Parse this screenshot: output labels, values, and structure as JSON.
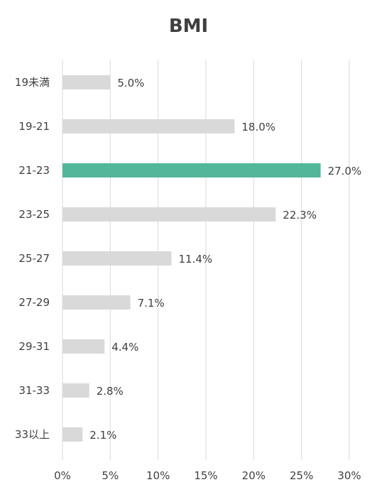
{
  "chart_data": {
    "type": "bar",
    "orientation": "horizontal",
    "title": "BMI",
    "categories": [
      "19未満",
      "19-21",
      "21-23",
      "23-25",
      "25-27",
      "27-29",
      "29-31",
      "31-33",
      "33以上"
    ],
    "values": [
      5.0,
      18.0,
      27.0,
      22.3,
      11.4,
      7.1,
      4.4,
      2.8,
      2.1
    ],
    "value_labels": [
      "5.0%",
      "18.0%",
      "27.0%",
      "22.3%",
      "11.4%",
      "7.1%",
      "4.4%",
      "2.8%",
      "2.1%"
    ],
    "x_ticks": [
      0,
      5,
      10,
      15,
      20,
      25,
      30
    ],
    "x_tick_labels": [
      "0%",
      "5%",
      "10%",
      "15%",
      "20%",
      "25%",
      "30%"
    ],
    "xlim": [
      0,
      30
    ],
    "xlabel": "",
    "ylabel": "",
    "grid": "vertical",
    "legend": "none",
    "highlight_index": 2,
    "colors": {
      "bar": "#d9d9d9",
      "highlight": "#52b69a",
      "grid": "#d9d9d9",
      "text": "#404040"
    }
  }
}
